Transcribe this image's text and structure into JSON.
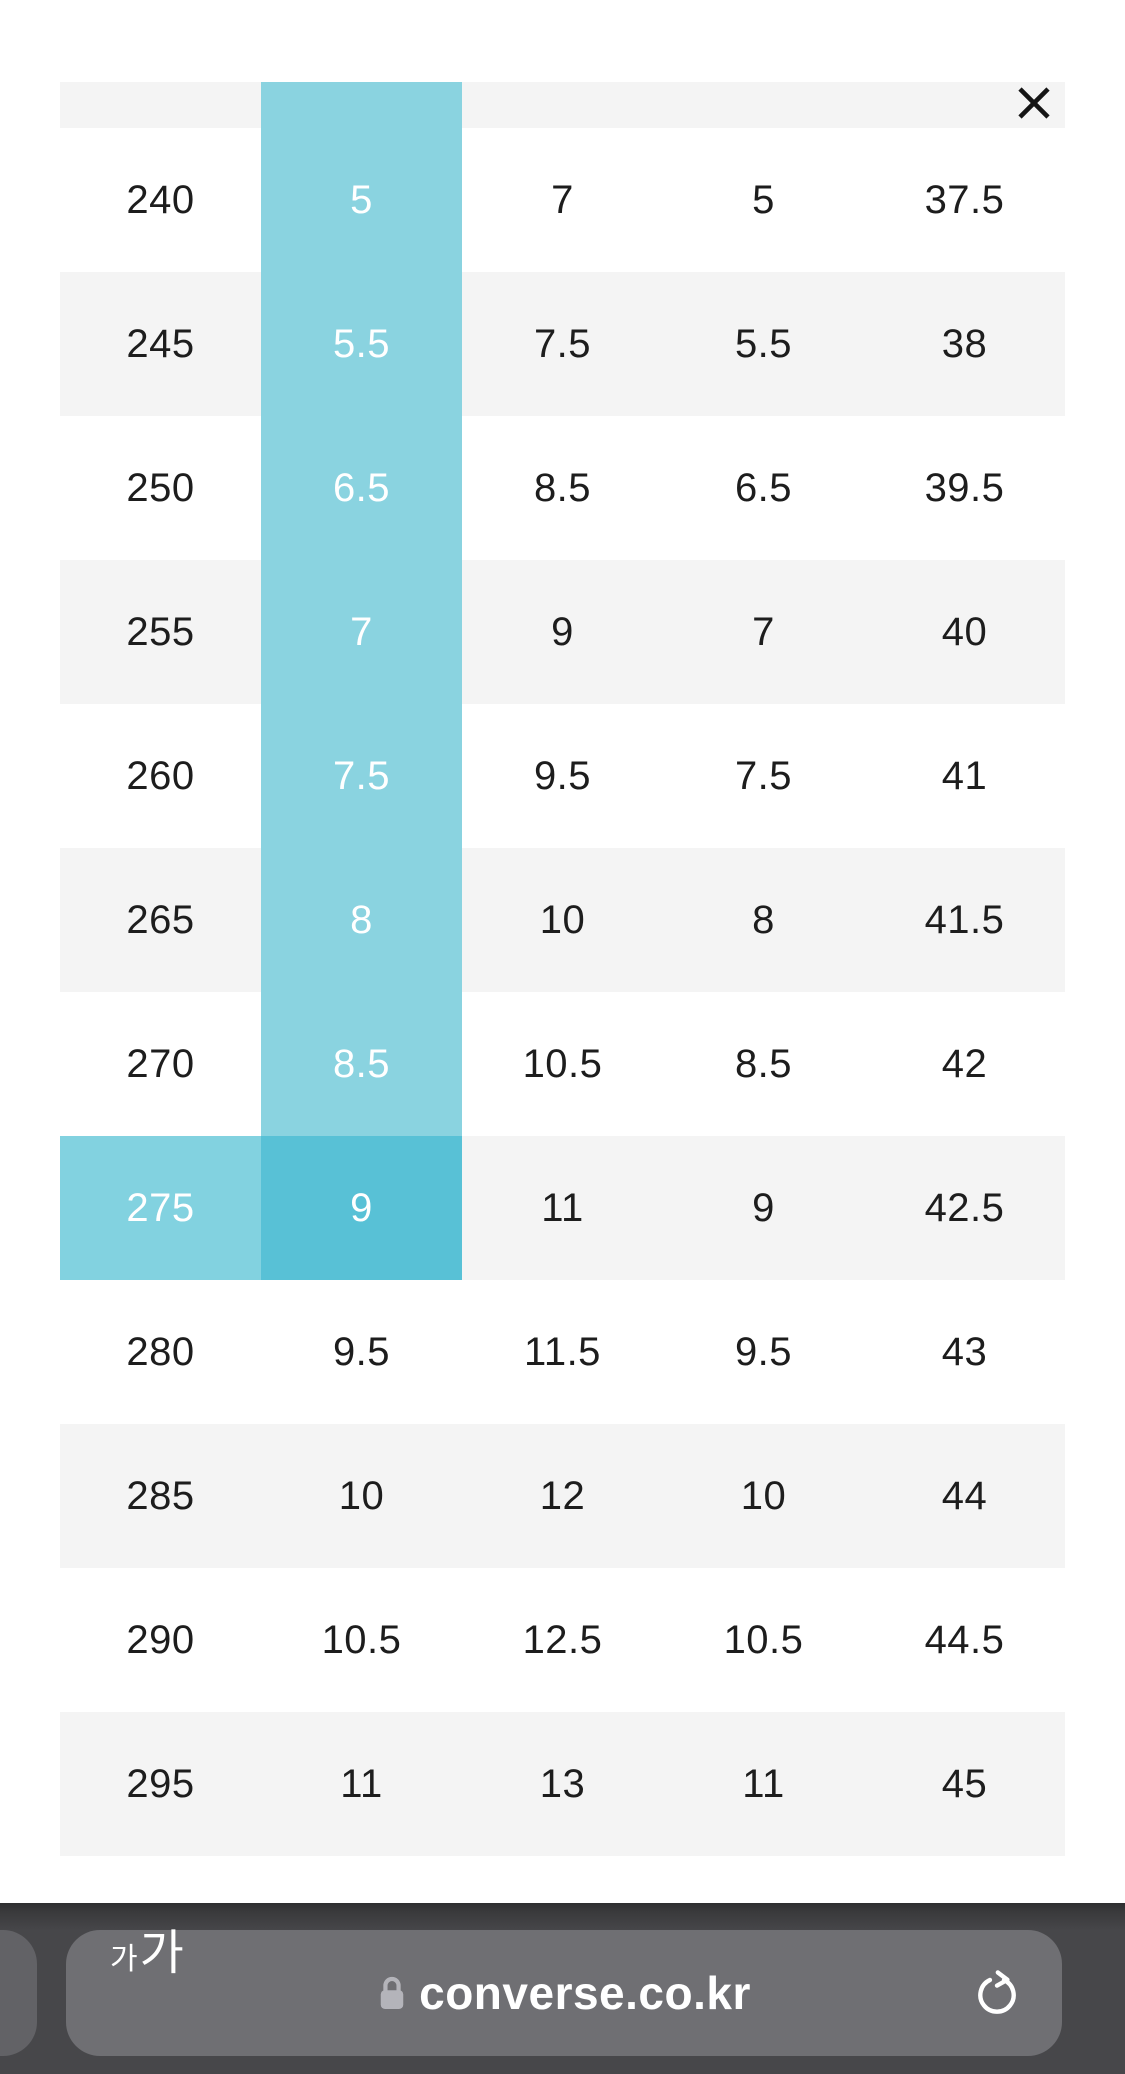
{
  "size_chart": {
    "rows": [
      [
        "240",
        "5",
        "7",
        "5",
        "37.5"
      ],
      [
        "245",
        "5.5",
        "7.5",
        "5.5",
        "38"
      ],
      [
        "250",
        "6.5",
        "8.5",
        "6.5",
        "39.5"
      ],
      [
        "255",
        "7",
        "9",
        "7",
        "40"
      ],
      [
        "260",
        "7.5",
        "9.5",
        "7.5",
        "41"
      ],
      [
        "265",
        "8",
        "10",
        "8",
        "41.5"
      ],
      [
        "270",
        "8.5",
        "10.5",
        "8.5",
        "42"
      ],
      [
        "275",
        "9",
        "11",
        "9",
        "42.5"
      ],
      [
        "280",
        "9.5",
        "11.5",
        "9.5",
        "43"
      ],
      [
        "285",
        "10",
        "12",
        "10",
        "44"
      ],
      [
        "290",
        "10.5",
        "12.5",
        "10.5",
        "44.5"
      ],
      [
        "295",
        "11",
        "13",
        "11",
        "45"
      ]
    ],
    "selected_size": "275",
    "selected_col_index": 1,
    "close_icon": "x",
    "colors": {
      "stripe": "#f4f4f4",
      "column_highlight": "#8ad3e0",
      "row_highlight": "#82d2e0",
      "intersection_highlight": "#58c1d6",
      "cell_text": "#1d1d1d",
      "highlight_text": "#ffffff"
    }
  },
  "browser_toolbar": {
    "text_size_button": {
      "small": "가",
      "large": "가"
    },
    "lock_icon": "lock",
    "url": "converse.co.kr",
    "reload_icon": "reload",
    "colors": {
      "bar": "#47474a",
      "pill": "#6f6f73",
      "url_text": "#ffffff"
    }
  }
}
